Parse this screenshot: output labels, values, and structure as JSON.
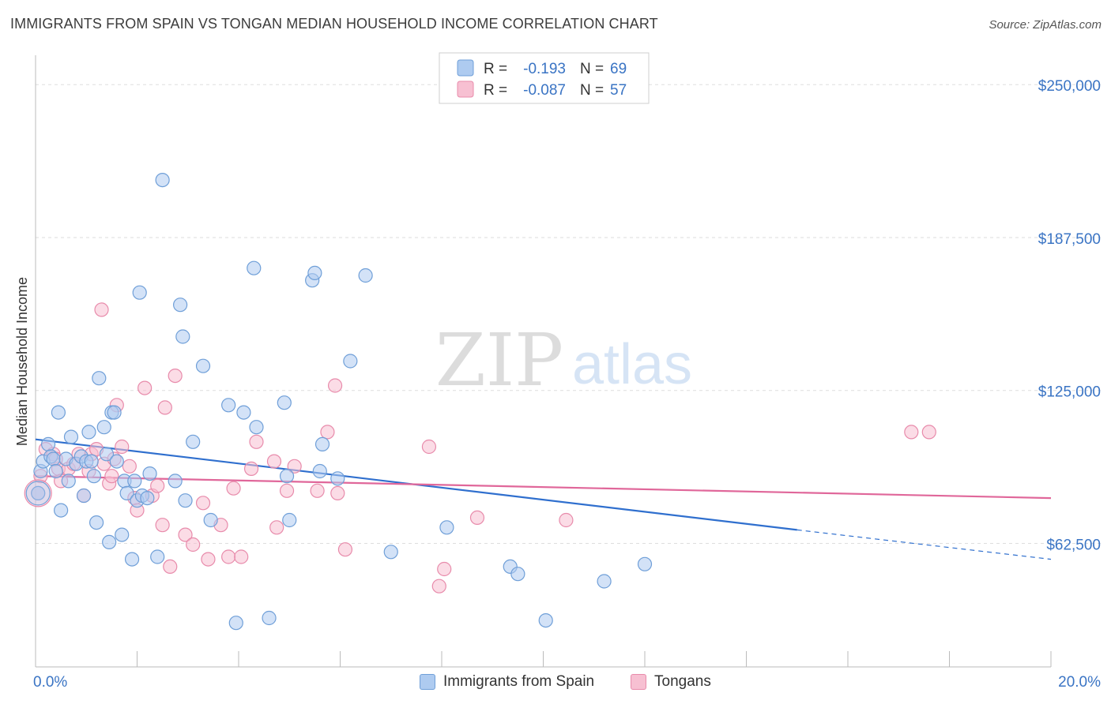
{
  "title": "IMMIGRANTS FROM SPAIN VS TONGAN MEDIAN HOUSEHOLD INCOME CORRELATION CHART",
  "source": "Source: ZipAtlas.com",
  "watermark": {
    "zip": "ZIP",
    "atlas": "atlas"
  },
  "legend_top": [
    {
      "r_label": "R =",
      "r_value": "-0.193",
      "n_label": "N =",
      "n_value": "69"
    },
    {
      "r_label": "R =",
      "r_value": "-0.087",
      "n_label": "N =",
      "n_value": "57"
    }
  ],
  "colors": {
    "blue_fill": "#aecbf0",
    "blue_stroke": "#6f9fd8",
    "blue_line": "#2f6fce",
    "pink_fill": "#f7c0d2",
    "pink_stroke": "#e88bab",
    "pink_line": "#e0679a",
    "axis_text": "#3a74c4",
    "grid": "#dddddd"
  },
  "chart_data": {
    "type": "scatter",
    "title": "IMMIGRANTS FROM SPAIN VS TONGAN MEDIAN HOUSEHOLD INCOME CORRELATION CHART",
    "xlabel": "",
    "ylabel": "Median Household Income",
    "xlim": [
      0,
      20
    ],
    "ylim": [
      12000,
      262000
    ],
    "x_tick_labels": [
      "0.0%",
      "20.0%"
    ],
    "y_ticks": [
      62500,
      125000,
      187500,
      250000
    ],
    "y_tick_labels": [
      "$62,500",
      "$125,000",
      "$187,500",
      "$250,000"
    ],
    "grid": "horizontal dashed",
    "legend_position": "top-center",
    "series": [
      {
        "name": "Immigrants from Spain",
        "r": -0.193,
        "n": 69,
        "trend": {
          "x0": 0,
          "y0": 105000,
          "x1": 15,
          "y1": 68000,
          "dashed_to_x": 20,
          "dashed_to_y": 56000
        },
        "points": [
          [
            0.1,
            92000
          ],
          [
            0.15,
            96000
          ],
          [
            0.25,
            103000
          ],
          [
            0.3,
            98000
          ],
          [
            0.35,
            97000
          ],
          [
            0.4,
            92000
          ],
          [
            0.45,
            116000
          ],
          [
            0.5,
            76000
          ],
          [
            0.6,
            97000
          ],
          [
            0.65,
            88000
          ],
          [
            0.7,
            106000
          ],
          [
            0.8,
            95000
          ],
          [
            0.9,
            98000
          ],
          [
            0.95,
            82000
          ],
          [
            1.0,
            96000
          ],
          [
            1.05,
            108000
          ],
          [
            1.1,
            96000
          ],
          [
            1.15,
            90000
          ],
          [
            1.2,
            71000
          ],
          [
            1.25,
            130000
          ],
          [
            1.35,
            110000
          ],
          [
            1.4,
            99000
          ],
          [
            1.45,
            63000
          ],
          [
            1.5,
            116000
          ],
          [
            1.55,
            116000
          ],
          [
            1.6,
            96000
          ],
          [
            1.7,
            66000
          ],
          [
            1.75,
            88000
          ],
          [
            1.8,
            83000
          ],
          [
            1.9,
            56000
          ],
          [
            1.95,
            88000
          ],
          [
            2.0,
            80000
          ],
          [
            2.1,
            82000
          ],
          [
            2.05,
            165000
          ],
          [
            2.2,
            81000
          ],
          [
            2.25,
            91000
          ],
          [
            2.4,
            57000
          ],
          [
            2.5,
            211000
          ],
          [
            2.75,
            88000
          ],
          [
            2.85,
            160000
          ],
          [
            2.9,
            147000
          ],
          [
            2.95,
            80000
          ],
          [
            3.1,
            104000
          ],
          [
            3.3,
            135000
          ],
          [
            3.45,
            72000
          ],
          [
            3.8,
            119000
          ],
          [
            3.95,
            30000
          ],
          [
            4.1,
            116000
          ],
          [
            4.3,
            175000
          ],
          [
            4.35,
            110000
          ],
          [
            4.6,
            32000
          ],
          [
            4.95,
            90000
          ],
          [
            4.9,
            120000
          ],
          [
            5.0,
            72000
          ],
          [
            5.45,
            170000
          ],
          [
            5.5,
            173000
          ],
          [
            5.6,
            92000
          ],
          [
            5.65,
            103000
          ],
          [
            5.95,
            89000
          ],
          [
            6.2,
            137000
          ],
          [
            6.5,
            172000
          ],
          [
            7.0,
            59000
          ],
          [
            8.1,
            69000
          ],
          [
            9.35,
            53000
          ],
          [
            9.5,
            50000
          ],
          [
            10.05,
            31000
          ],
          [
            11.2,
            47000
          ],
          [
            12.0,
            54000
          ],
          [
            0.05,
            83000
          ]
        ]
      },
      {
        "name": "Tongans",
        "r": -0.087,
        "n": 57,
        "trend": {
          "x0": 0,
          "y0": 90000,
          "x1": 20,
          "y1": 81000
        },
        "points": [
          [
            0.05,
            83000
          ],
          [
            0.1,
            90000
          ],
          [
            0.2,
            101000
          ],
          [
            0.35,
            99000
          ],
          [
            0.45,
            93000
          ],
          [
            0.5,
            88000
          ],
          [
            0.65,
            93000
          ],
          [
            0.75,
            95000
          ],
          [
            0.85,
            99000
          ],
          [
            0.95,
            82000
          ],
          [
            1.05,
            92000
          ],
          [
            1.1,
            99000
          ],
          [
            1.2,
            101000
          ],
          [
            1.3,
            158000
          ],
          [
            1.35,
            95000
          ],
          [
            1.45,
            87000
          ],
          [
            1.55,
            97000
          ],
          [
            1.6,
            119000
          ],
          [
            1.7,
            102000
          ],
          [
            1.85,
            94000
          ],
          [
            1.95,
            81000
          ],
          [
            2.0,
            76000
          ],
          [
            2.15,
            126000
          ],
          [
            2.3,
            82000
          ],
          [
            2.4,
            86000
          ],
          [
            2.5,
            70000
          ],
          [
            2.55,
            118000
          ],
          [
            2.65,
            53000
          ],
          [
            2.75,
            131000
          ],
          [
            2.95,
            66000
          ],
          [
            3.1,
            62000
          ],
          [
            3.3,
            79000
          ],
          [
            3.4,
            56000
          ],
          [
            3.65,
            70000
          ],
          [
            3.8,
            57000
          ],
          [
            3.9,
            85000
          ],
          [
            4.05,
            57000
          ],
          [
            4.25,
            93000
          ],
          [
            4.35,
            104000
          ],
          [
            4.7,
            96000
          ],
          [
            4.95,
            84000
          ],
          [
            4.75,
            69000
          ],
          [
            5.1,
            94000
          ],
          [
            5.55,
            84000
          ],
          [
            5.75,
            108000
          ],
          [
            5.9,
            127000
          ],
          [
            5.95,
            83000
          ],
          [
            6.1,
            60000
          ],
          [
            7.75,
            102000
          ],
          [
            8.05,
            52000
          ],
          [
            7.95,
            45000
          ],
          [
            8.7,
            73000
          ],
          [
            10.45,
            72000
          ],
          [
            17.25,
            108000
          ],
          [
            17.6,
            108000
          ],
          [
            0.4,
            97000
          ],
          [
            1.5,
            90000
          ]
        ]
      }
    ]
  }
}
